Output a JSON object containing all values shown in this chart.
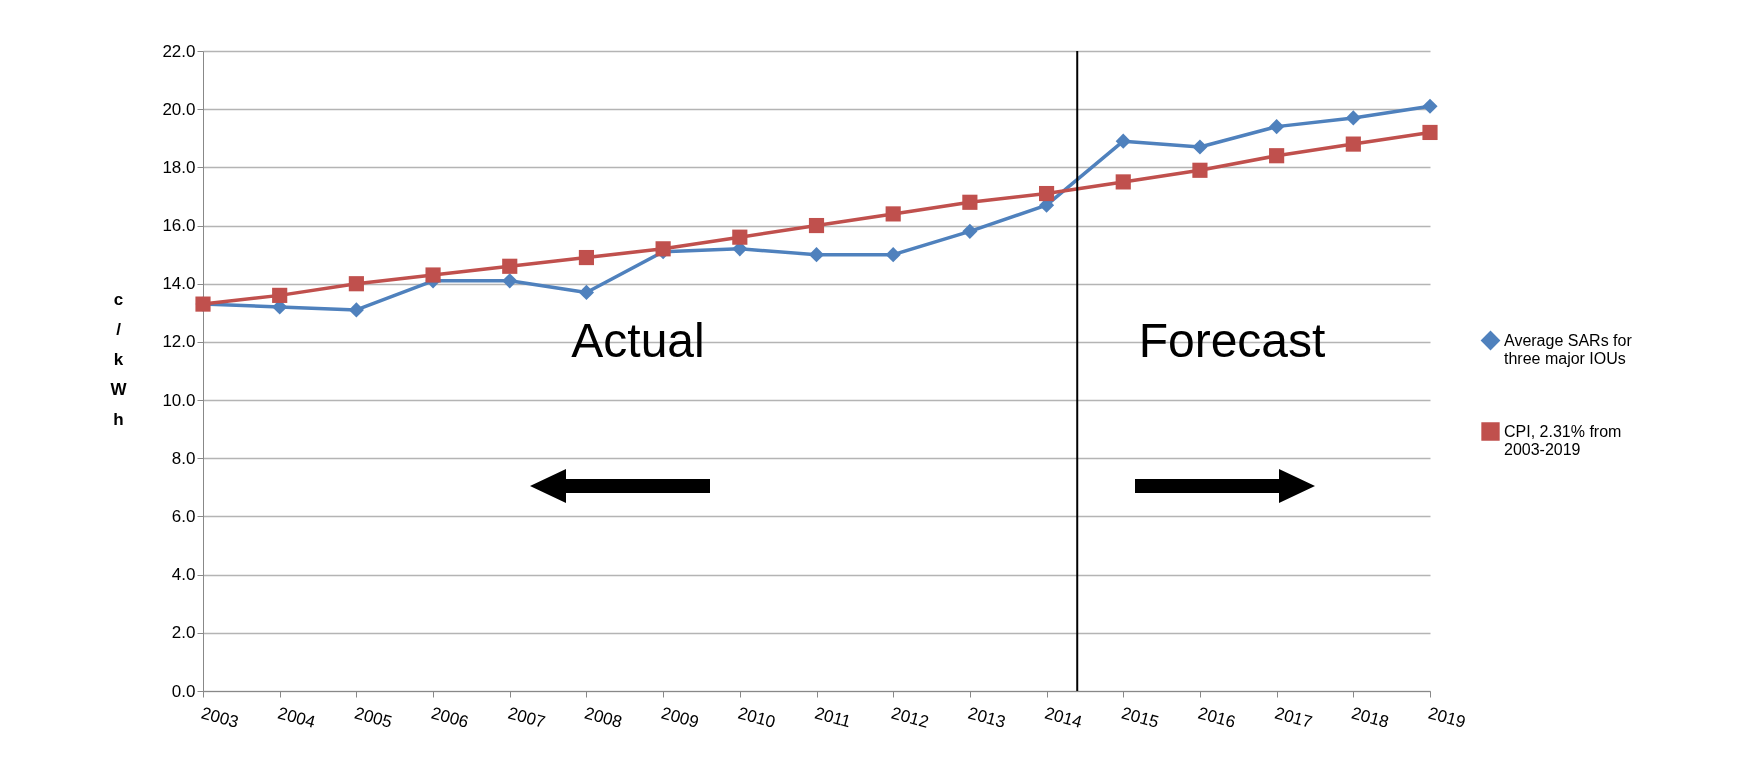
{
  "chart_data": {
    "type": "line",
    "ylabel": "c/kWh",
    "x": [
      2003,
      2004,
      2005,
      2006,
      2007,
      2008,
      2009,
      2010,
      2011,
      2012,
      2013,
      2014,
      2015,
      2016,
      2017,
      2018,
      2019
    ],
    "series": [
      {
        "name": "Average SARs for three major IOUs",
        "color": "#4f81bd",
        "marker": "diamond",
        "values": [
          13.3,
          13.2,
          13.1,
          14.1,
          14.1,
          13.7,
          15.1,
          15.2,
          15.0,
          15.0,
          15.8,
          16.7,
          18.9,
          18.7,
          19.4,
          19.7,
          20.1
        ]
      },
      {
        "name": "CPI, 2.31% from 2003-2019",
        "color": "#c0504d",
        "marker": "square",
        "values": [
          13.3,
          13.6,
          14.0,
          14.3,
          14.6,
          14.9,
          15.2,
          15.6,
          16.0,
          16.4,
          16.8,
          17.1,
          17.5,
          17.9,
          18.4,
          18.8,
          19.2
        ]
      }
    ],
    "xlim": [
      2003,
      2019
    ],
    "xticks": [
      2003,
      2004,
      2005,
      2006,
      2007,
      2008,
      2009,
      2010,
      2011,
      2012,
      2013,
      2014,
      2015,
      2016,
      2017,
      2018,
      2019
    ],
    "ylim": [
      0,
      22
    ],
    "yticks": [
      {
        "value": 0,
        "label": "0.0"
      },
      {
        "value": 2,
        "label": "2.0"
      },
      {
        "value": 4,
        "label": "4.0"
      },
      {
        "value": 6,
        "label": "6.0"
      },
      {
        "value": 8,
        "label": "8.0"
      },
      {
        "value": 10,
        "label": "10.0"
      },
      {
        "value": 12,
        "label": "12.0"
      },
      {
        "value": 14,
        "label": "14.0"
      },
      {
        "value": 16,
        "label": "16.0"
      },
      {
        "value": 18,
        "label": "18.0"
      },
      {
        "value": 20,
        "label": "20.0"
      },
      {
        "value": 22,
        "label": "22.0"
      }
    ],
    "grid": "y",
    "legend": "right",
    "line_style": "solid",
    "ref_lines": [
      {
        "axis": "x",
        "value": 2014.4,
        "color": "#000000"
      }
    ],
    "annotations": [
      "Actual",
      "Forecast"
    ]
  }
}
